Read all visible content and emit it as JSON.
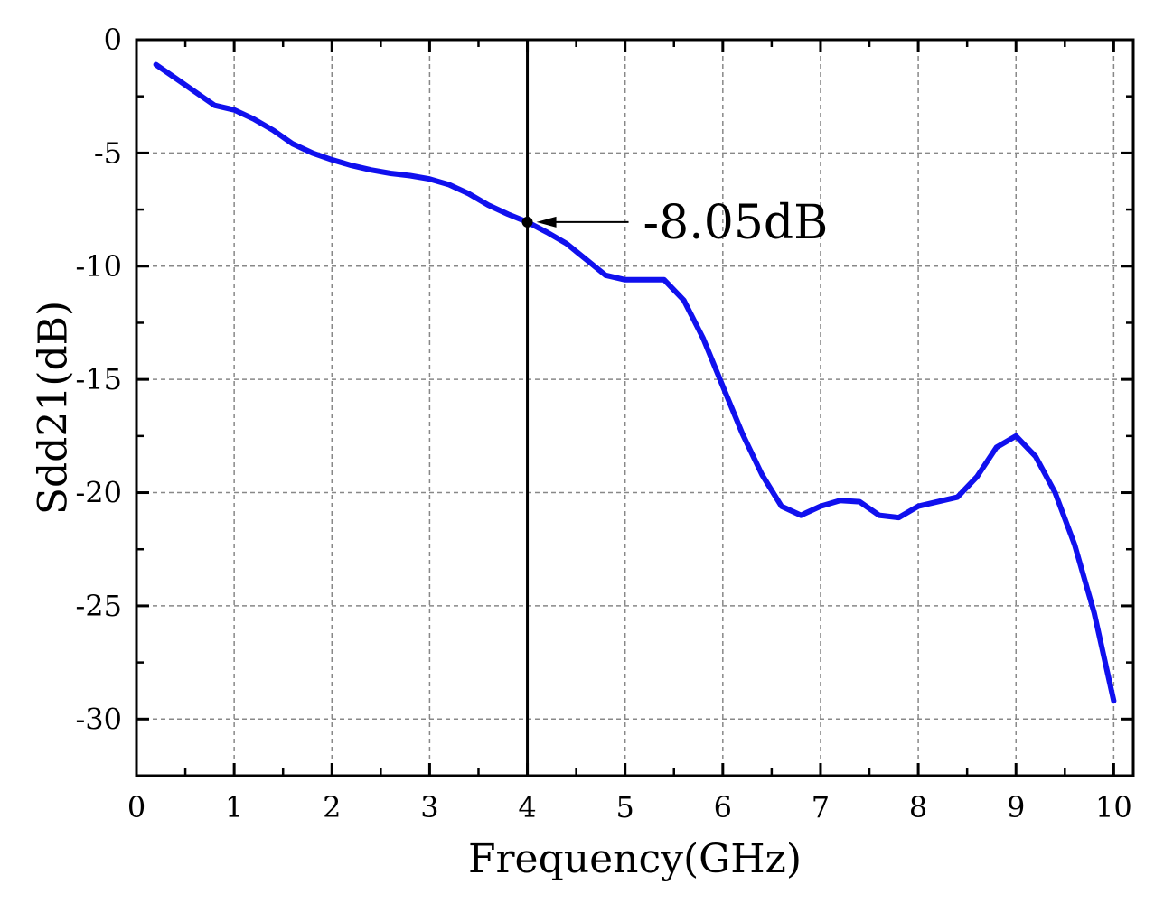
{
  "chart_data": {
    "type": "line",
    "title": "",
    "xlabel": "Frequency(GHz)",
    "ylabel": "Sdd21(dB)",
    "xlim": [
      0,
      10.2
    ],
    "ylim": [
      -32.5,
      0
    ],
    "xticks": [
      0,
      1,
      2,
      3,
      4,
      5,
      6,
      7,
      8,
      9,
      10
    ],
    "yticks": [
      0,
      -5,
      -10,
      -15,
      -20,
      -25,
      -30
    ],
    "xtick_labels": [
      "0",
      "1",
      "2",
      "3",
      "4",
      "5",
      "6",
      "7",
      "8",
      "9",
      "10"
    ],
    "ytick_labels": [
      "0",
      "-5",
      "-10",
      "-15",
      "-20",
      "-25",
      "-30"
    ],
    "grid": true,
    "series": [
      {
        "color": "#1010ee",
        "x": [
          0.2,
          0.4,
          0.6,
          0.8,
          1.0,
          1.2,
          1.4,
          1.6,
          1.8,
          2.0,
          2.2,
          2.4,
          2.6,
          2.8,
          3.0,
          3.2,
          3.4,
          3.6,
          3.8,
          4.0,
          4.2,
          4.4,
          4.6,
          4.8,
          5.0,
          5.2,
          5.4,
          5.6,
          5.8,
          6.0,
          6.2,
          6.4,
          6.6,
          6.8,
          7.0,
          7.2,
          7.4,
          7.6,
          7.8,
          8.0,
          8.2,
          8.4,
          8.6,
          8.8,
          9.0,
          9.2,
          9.4,
          9.6,
          9.8,
          10.0
        ],
        "y": [
          -1.1,
          -1.7,
          -2.3,
          -2.9,
          -3.1,
          -3.5,
          -4.0,
          -4.6,
          -5.0,
          -5.3,
          -5.55,
          -5.75,
          -5.9,
          -6.0,
          -6.15,
          -6.4,
          -6.8,
          -7.3,
          -7.7,
          -8.05,
          -8.5,
          -9.0,
          -9.7,
          -10.4,
          -10.6,
          -10.6,
          -10.6,
          -11.5,
          -13.2,
          -15.3,
          -17.4,
          -19.2,
          -20.6,
          -21.0,
          -20.6,
          -20.35,
          -20.4,
          -21.0,
          -21.1,
          -20.6,
          -20.4,
          -20.2,
          -19.3,
          -18.0,
          -17.5,
          -18.4,
          -20.0,
          -22.3,
          -25.3,
          -29.2
        ]
      }
    ],
    "marker_line": {
      "x": 4
    },
    "annotations": [
      {
        "text": "-8.05dB",
        "x": 4,
        "y": -8.05
      }
    ]
  }
}
